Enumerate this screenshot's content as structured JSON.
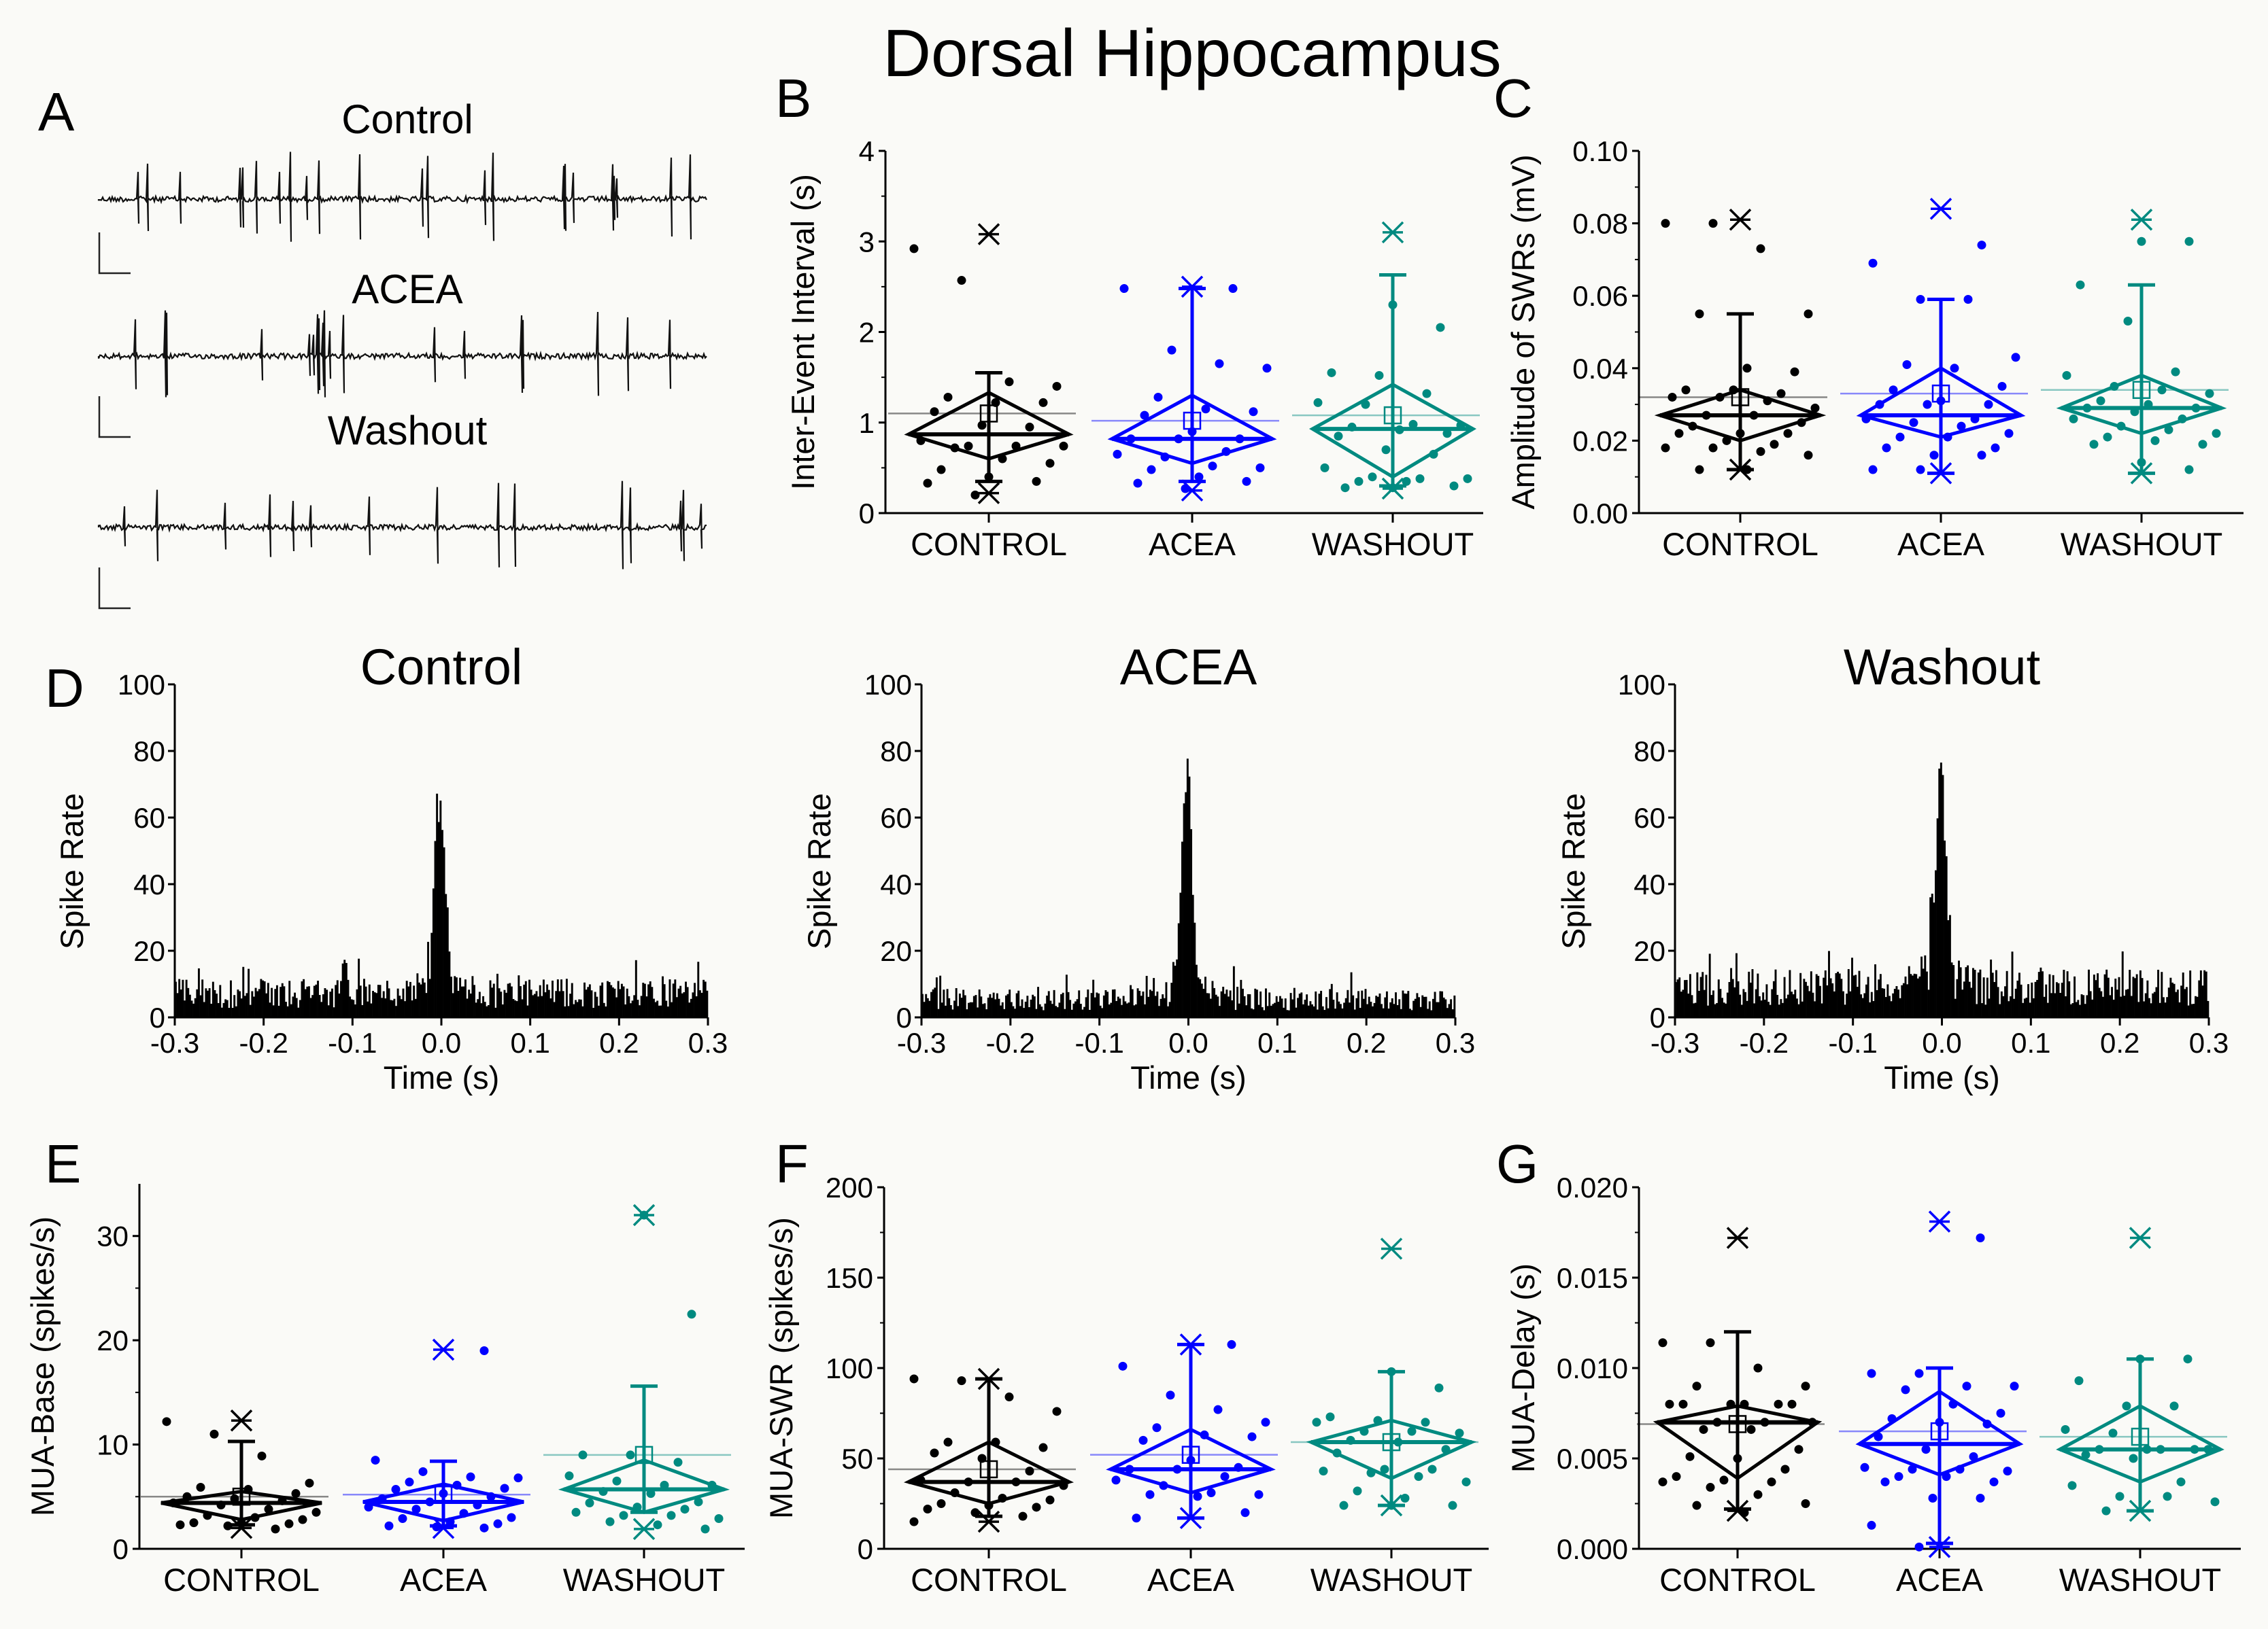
{
  "title": "Dorsal Hippocampus",
  "colors": {
    "CONTROL": "#000000",
    "ACEA": "#0000ff",
    "WASHOUT": "#008a80",
    "background": "#fafaf7"
  },
  "panel_a": {
    "label": "A",
    "traces": [
      {
        "title": "Control"
      },
      {
        "title": "ACEA"
      },
      {
        "title": "Washout"
      }
    ]
  },
  "chart_data": [
    {
      "id": "B",
      "label": "B",
      "type": "box-diamond",
      "ylabel": "Inter-Event Interval (s)",
      "ylim": [
        0,
        4
      ],
      "yticks": [
        "0",
        "1",
        "2",
        "3",
        "4"
      ],
      "ytick_values": [
        0,
        1,
        2,
        3,
        4
      ],
      "categories": [
        "CONTROL",
        "ACEA",
        "WASHOUT"
      ],
      "groups": [
        {
          "name": "CONTROL",
          "max": 3.08,
          "min": 0.22,
          "whisker_high": 1.55,
          "whisker_low": 0.35,
          "diamond_high": 1.33,
          "diamond_low": 0.6,
          "median": 0.87,
          "mean": 1.1,
          "points": [
            2.92,
            2.57,
            1.45,
            1.4,
            1.28,
            1.22,
            1.22,
            1.12,
            0.97,
            0.95,
            0.8,
            0.74,
            0.74,
            0.74,
            0.72,
            0.6,
            0.55,
            0.48,
            0.4,
            0.35,
            0.33,
            0.2
          ]
        },
        {
          "name": "ACEA",
          "max": 2.5,
          "min": 0.25,
          "whisker_high": 2.48,
          "whisker_low": 0.35,
          "diamond_high": 1.3,
          "diamond_low": 0.55,
          "median": 0.82,
          "mean": 1.02,
          "points": [
            2.48,
            2.48,
            1.8,
            1.65,
            1.6,
            1.28,
            1.15,
            1.12,
            1.08,
            0.9,
            0.82,
            0.82,
            0.82,
            0.68,
            0.65,
            0.62,
            0.52,
            0.5,
            0.48,
            0.4,
            0.35,
            0.33,
            0.27
          ]
        },
        {
          "name": "WASHOUT",
          "max": 3.1,
          "min": 0.27,
          "whisker_high": 2.63,
          "whisker_low": 0.3,
          "diamond_high": 1.42,
          "diamond_low": 0.4,
          "median": 0.93,
          "mean": 1.08,
          "points": [
            2.3,
            2.05,
            1.55,
            1.52,
            1.32,
            1.22,
            1.2,
            0.98,
            0.97,
            0.95,
            0.92,
            0.88,
            0.85,
            0.7,
            0.65,
            0.5,
            0.4,
            0.38,
            0.38,
            0.35,
            0.35,
            0.3,
            0.28,
            0.28
          ]
        }
      ]
    },
    {
      "id": "C",
      "label": "C",
      "type": "box-diamond",
      "ylabel": "Amplitude of SWRs (mV)",
      "ylim": [
        0,
        0.1
      ],
      "yticks": [
        "0.00",
        "0.02",
        "0.04",
        "0.06",
        "0.08",
        "0.10"
      ],
      "ytick_values": [
        0,
        0.02,
        0.04,
        0.06,
        0.08,
        0.1
      ],
      "categories": [
        "CONTROL",
        "ACEA",
        "WASHOUT"
      ],
      "groups": [
        {
          "name": "CONTROL",
          "max": 0.081,
          "min": 0.012,
          "whisker_high": 0.055,
          "whisker_low": 0.012,
          "diamond_high": 0.034,
          "diamond_low": 0.02,
          "median": 0.027,
          "mean": 0.032,
          "points": [
            0.08,
            0.08,
            0.073,
            0.055,
            0.055,
            0.04,
            0.039,
            0.034,
            0.034,
            0.033,
            0.032,
            0.032,
            0.031,
            0.029,
            0.027,
            0.027,
            0.025,
            0.024,
            0.022,
            0.022,
            0.022,
            0.02,
            0.019,
            0.018,
            0.018,
            0.017,
            0.016,
            0.012,
            0.012
          ]
        },
        {
          "name": "ACEA",
          "max": 0.084,
          "min": 0.011,
          "whisker_high": 0.059,
          "whisker_low": 0.011,
          "diamond_high": 0.04,
          "diamond_low": 0.021,
          "median": 0.027,
          "mean": 0.033,
          "points": [
            0.074,
            0.069,
            0.059,
            0.059,
            0.043,
            0.041,
            0.04,
            0.035,
            0.034,
            0.031,
            0.03,
            0.03,
            0.03,
            0.026,
            0.026,
            0.025,
            0.024,
            0.022,
            0.021,
            0.021,
            0.018,
            0.018,
            0.016,
            0.016,
            0.012,
            0.012
          ]
        },
        {
          "name": "WASHOUT",
          "max": 0.081,
          "min": 0.011,
          "whisker_high": 0.063,
          "whisker_low": 0.011,
          "diamond_high": 0.038,
          "diamond_low": 0.022,
          "median": 0.029,
          "mean": 0.034,
          "points": [
            0.075,
            0.075,
            0.063,
            0.053,
            0.039,
            0.038,
            0.035,
            0.034,
            0.033,
            0.031,
            0.03,
            0.029,
            0.029,
            0.028,
            0.026,
            0.026,
            0.024,
            0.023,
            0.022,
            0.021,
            0.02,
            0.019,
            0.019,
            0.014,
            0.012
          ]
        }
      ]
    },
    {
      "id": "D",
      "label": "D",
      "type": "bar",
      "subtype": "peri-event histogram",
      "panels": [
        {
          "title": "Control",
          "baseline_rate": 8,
          "peak_rate": 59,
          "peak_time": -0.002
        },
        {
          "title": "ACEA",
          "baseline_rate": 6,
          "peak_rate": 70,
          "peak_time": -0.002
        },
        {
          "title": "Washout",
          "baseline_rate": 10,
          "peak_rate": 70,
          "peak_time": -0.002
        }
      ],
      "xlabel": "Time (s)",
      "ylabel": "Spike Rate",
      "xlim": [
        -0.3,
        0.3
      ],
      "ylim": [
        0,
        100
      ],
      "xticks": [
        "-0.3",
        "-0.2",
        "-0.1",
        "0.0",
        "0.1",
        "0.2",
        "0.3"
      ],
      "xtick_values": [
        -0.3,
        -0.2,
        -0.1,
        0,
        0.1,
        0.2,
        0.3
      ],
      "yticks": [
        "0",
        "20",
        "40",
        "60",
        "80",
        "100"
      ],
      "ytick_values": [
        0,
        20,
        40,
        60,
        80,
        100
      ]
    },
    {
      "id": "E",
      "label": "E",
      "type": "box-diamond",
      "ylabel": "MUA-Base (spikes/s)",
      "ylim": [
        0,
        35
      ],
      "yticks": [
        "0",
        "10",
        "20",
        "30"
      ],
      "ytick_values": [
        0,
        10,
        20,
        30
      ],
      "categories": [
        "CONTROL",
        "ACEA",
        "WASHOUT"
      ],
      "groups": [
        {
          "name": "CONTROL",
          "max": 12.3,
          "min": 2.0,
          "whisker_high": 10.3,
          "whisker_low": 2.3,
          "diamond_high": 5.5,
          "diamond_low": 2.8,
          "median": 4.4,
          "mean": 5.0,
          "points": [
            12.2,
            11.0,
            8.9,
            6.3,
            5.9,
            5.7,
            5.3,
            5.0,
            4.8,
            4.6,
            4.4,
            4.2,
            3.8,
            3.5,
            3.2,
            3.0,
            2.8,
            2.5,
            2.5,
            2.4,
            2.3,
            2.2,
            1.9
          ]
        },
        {
          "name": "ACEA",
          "max": 19.1,
          "min": 2.0,
          "whisker_high": 8.4,
          "whisker_low": 2.2,
          "diamond_high": 6.2,
          "diamond_low": 2.7,
          "median": 4.5,
          "mean": 5.2,
          "points": [
            19.0,
            8.5,
            7.4,
            6.9,
            6.8,
            6.4,
            6.1,
            5.8,
            5.7,
            5.3,
            5.0,
            4.8,
            4.5,
            4.2,
            4.0,
            3.8,
            3.4,
            3.0,
            2.9,
            2.6,
            2.4,
            2.2,
            2.1,
            2.0
          ]
        },
        {
          "name": "WASHOUT",
          "max": 32.0,
          "min": 1.9,
          "whisker_high": 15.6,
          "whisker_low": 3.5,
          "diamond_high": 8.5,
          "diamond_low": 3.5,
          "median": 5.7,
          "mean": 9.0,
          "points": [
            32.0,
            22.5,
            9.0,
            9.0,
            8.3,
            7.0,
            6.5,
            6.1,
            6.1,
            5.5,
            5.3,
            4.5,
            4.4,
            4.0,
            3.8,
            3.5,
            3.2,
            3.2,
            2.9,
            2.6,
            2.3,
            1.9
          ]
        }
      ]
    },
    {
      "id": "F",
      "label": "F",
      "type": "box-diamond",
      "ylabel": "MUA-SWR (spikes/s)",
      "ylim": [
        0,
        200
      ],
      "yticks": [
        "0",
        "50",
        "100",
        "150",
        "200"
      ],
      "ytick_values": [
        0,
        50,
        100,
        150,
        200
      ],
      "categories": [
        "CONTROL",
        "ACEA",
        "WASHOUT"
      ],
      "groups": [
        {
          "name": "CONTROL",
          "max": 94,
          "min": 15,
          "whisker_high": 94,
          "whisker_low": 18,
          "diamond_high": 59,
          "diamond_low": 25,
          "median": 37,
          "mean": 44,
          "points": [
            94,
            93,
            84,
            76,
            59,
            59,
            56,
            53,
            50,
            43,
            38,
            37,
            37,
            35,
            31,
            28,
            27,
            25,
            24,
            23,
            22,
            20,
            18,
            15
          ]
        },
        {
          "name": "ACEA",
          "max": 113,
          "min": 17,
          "whisker_high": 113,
          "whisker_low": 17,
          "diamond_high": 66,
          "diamond_low": 31,
          "median": 44,
          "mean": 52,
          "points": [
            113,
            101,
            85,
            77,
            70,
            67,
            63,
            62,
            60,
            49,
            45,
            44,
            44,
            40,
            38,
            35,
            31,
            30,
            30,
            29,
            20,
            17
          ]
        },
        {
          "name": "WASHOUT",
          "max": 166,
          "min": 24,
          "whisker_high": 98,
          "whisker_low": 24,
          "diamond_high": 71,
          "diamond_low": 39,
          "median": 59,
          "mean": 59,
          "points": [
            98,
            89,
            73,
            71,
            70,
            70,
            65,
            65,
            64,
            60,
            59,
            55,
            53,
            44,
            44,
            43,
            42,
            40,
            37,
            32,
            28,
            24,
            24,
            24
          ]
        }
      ]
    },
    {
      "id": "G",
      "label": "G",
      "type": "box-diamond",
      "ylabel": "MUA-Delay (s)",
      "ylim": [
        0,
        0.02
      ],
      "yticks": [
        "0.000",
        "0.005",
        "0.010",
        "0.015",
        "0.020"
      ],
      "ytick_values": [
        0,
        0.005,
        0.01,
        0.015,
        0.02
      ],
      "categories": [
        "CONTROL",
        "ACEA",
        "WASHOUT"
      ],
      "groups": [
        {
          "name": "CONTROL",
          "max": 0.0172,
          "min": 0.0021,
          "whisker_high": 0.012,
          "whisker_low": 0.0022,
          "diamond_high": 0.0079,
          "diamond_low": 0.0039,
          "median": 0.007,
          "mean": 0.0069,
          "points": [
            0.0114,
            0.0114,
            0.01,
            0.009,
            0.009,
            0.008,
            0.008,
            0.008,
            0.008,
            0.008,
            0.008,
            0.007,
            0.007,
            0.007,
            0.0066,
            0.0066,
            0.0055,
            0.0051,
            0.005,
            0.0044,
            0.004,
            0.0038,
            0.0037,
            0.0037,
            0.0034,
            0.003,
            0.0025,
            0.0024,
            0.002
          ]
        },
        {
          "name": "ACEA",
          "max": 0.0181,
          "min": 0.0001,
          "whisker_high": 0.01,
          "whisker_low": 0.0003,
          "diamond_high": 0.0087,
          "diamond_low": 0.0041,
          "median": 0.0058,
          "mean": 0.0065,
          "points": [
            0.0172,
            0.0097,
            0.0097,
            0.009,
            0.009,
            0.0088,
            0.008,
            0.0075,
            0.0072,
            0.007,
            0.0069,
            0.0062,
            0.0055,
            0.0051,
            0.0045,
            0.0044,
            0.0044,
            0.0043,
            0.004,
            0.004,
            0.0037,
            0.0037,
            0.0028,
            0.0028,
            0.0013,
            0.0001
          ]
        },
        {
          "name": "WASHOUT",
          "max": 0.0172,
          "min": 0.0021,
          "whisker_high": 0.0105,
          "whisker_low": 0.0021,
          "diamond_high": 0.0079,
          "diamond_low": 0.0037,
          "median": 0.0055,
          "mean": 0.0062,
          "points": [
            0.0105,
            0.0105,
            0.0093,
            0.0079,
            0.0079,
            0.0066,
            0.0064,
            0.0055,
            0.0055,
            0.0055,
            0.0055,
            0.0055,
            0.0052,
            0.005,
            0.0037,
            0.0035,
            0.0029,
            0.0029,
            0.0026,
            0.0021
          ]
        }
      ]
    }
  ]
}
